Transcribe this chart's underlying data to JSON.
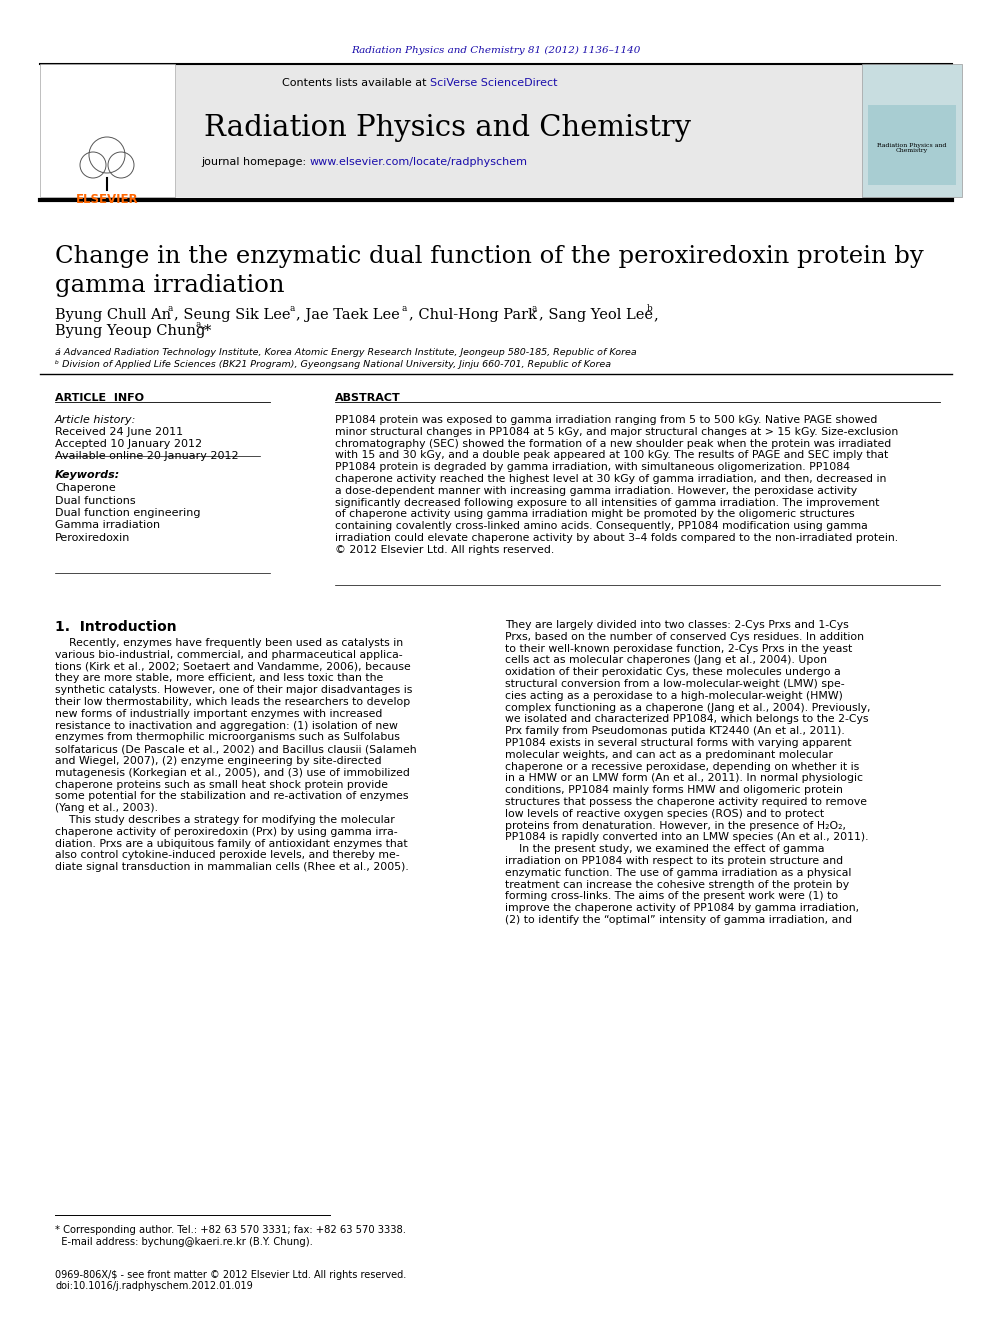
{
  "page_bg": "#ffffff",
  "journal_ref": "Radiation Physics and Chemistry 81 (2012) 1136–1140",
  "journal_ref_color": "#1a0dab",
  "journal_name": "Radiation Physics and Chemistry",
  "header_bg": "#e8e8e8",
  "contents_text": "Contents lists available at ",
  "sciverse_text": "SciVerse ScienceDirect",
  "sciverse_color": "#1a0dab",
  "journal_url": "www.elsevier.com/locate/radphyschem",
  "journal_url_color": "#1a0dab",
  "article_title": "Change in the enzymatic dual function of the peroxiredoxin protein by\ngamma irradiation",
  "article_info_title": "ARTICLE  INFO",
  "abstract_title": "ABSTRACT",
  "article_history_label": "Article history:",
  "received": "Received 24 June 2011",
  "accepted": "Accepted 10 January 2012",
  "available": "Available online 20 January 2012",
  "keywords_label": "Keywords:",
  "keywords": [
    "Chaperone",
    "Dual functions",
    "Dual function engineering",
    "Gamma irradiation",
    "Peroxiredoxin"
  ],
  "abstract_text": "PP1084 protein was exposed to gamma irradiation ranging from 5 to 500 kGy. Native PAGE showed\nminor structural changes in PP1084 at 5 kGy, and major structural changes at > 15 kGy. Size-exclusion\nchromatography (SEC) showed the formation of a new shoulder peak when the protein was irradiated\nwith 15 and 30 kGy, and a double peak appeared at 100 kGy. The results of PAGE and SEC imply that\nPP1084 protein is degraded by gamma irradiation, with simultaneous oligomerization. PP1084\nchaperone activity reached the highest level at 30 kGy of gamma irradiation, and then, decreased in\na dose-dependent manner with increasing gamma irradiation. However, the peroxidase activity\nsignificantly decreased following exposure to all intensities of gamma irradiation. The improvement\nof chaperone activity using gamma irradiation might be promoted by the oligomeric structures\ncontaining covalently cross-linked amino acids. Consequently, PP1084 modification using gamma\nirradiation could elevate chaperone activity by about 3–4 folds compared to the non-irradiated protein.\n© 2012 Elsevier Ltd. All rights reserved.",
  "intro_title": "1.  Introduction",
  "intro_col1_lines": [
    "    Recently, enzymes have frequently been used as catalysts in",
    "various bio-industrial, commercial, and pharmaceutical applica-",
    "tions (Kirk et al., 2002; Soetaert and Vandamme, 2006), because",
    "they are more stable, more efficient, and less toxic than the",
    "synthetic catalysts. However, one of their major disadvantages is",
    "their low thermostability, which leads the researchers to develop",
    "new forms of industrially important enzymes with increased",
    "resistance to inactivation and aggregation: (1) isolation of new",
    "enzymes from thermophilic microorganisms such as Sulfolabus",
    "solfataricus (De Pascale et al., 2002) and Bacillus clausii (Salameh",
    "and Wiegel, 2007), (2) enzyme engineering by site-directed",
    "mutagenesis (Korkegian et al., 2005), and (3) use of immobilized",
    "chaperone proteins such as small heat shock protein provide",
    "some potential for the stabilization and re-activation of enzymes",
    "(Yang et al., 2003).",
    "    This study describes a strategy for modifying the molecular",
    "chaperone activity of peroxiredoxin (Prx) by using gamma irra-",
    "diation. Prxs are a ubiquitous family of antioxidant enzymes that",
    "also control cytokine-induced peroxide levels, and thereby me-",
    "diate signal transduction in mammalian cells (Rhee et al., 2005)."
  ],
  "intro_col2_lines": [
    "They are largely divided into two classes: 2-Cys Prxs and 1-Cys",
    "Prxs, based on the number of conserved Cys residues. In addition",
    "to their well-known peroxidase function, 2-Cys Prxs in the yeast",
    "cells act as molecular chaperones (Jang et al., 2004). Upon",
    "oxidation of their peroxidatic Cys, these molecules undergo a",
    "structural conversion from a low-molecular-weight (LMW) spe-",
    "cies acting as a peroxidase to a high-molecular-weight (HMW)",
    "complex functioning as a chaperone (Jang et al., 2004). Previously,",
    "we isolated and characterized PP1084, which belongs to the 2-Cys",
    "Prx family from Pseudomonas putida KT2440 (An et al., 2011).",
    "PP1084 exists in several structural forms with varying apparent",
    "molecular weights, and can act as a predominant molecular",
    "chaperone or a recessive peroxidase, depending on whether it is",
    "in a HMW or an LMW form (An et al., 2011). In normal physiologic",
    "conditions, PP1084 mainly forms HMW and oligomeric protein",
    "structures that possess the chaperone activity required to remove",
    "low levels of reactive oxygen species (ROS) and to protect",
    "proteins from denaturation. However, in the presence of H₂O₂,",
    "PP1084 is rapidly converted into an LMW species (An et al., 2011).",
    "    In the present study, we examined the effect of gamma",
    "irradiation on PP1084 with respect to its protein structure and",
    "enzymatic function. The use of gamma irradiation as a physical",
    "treatment can increase the cohesive strength of the protein by",
    "forming cross-links. The aims of the present work were (1) to",
    "improve the chaperone activity of PP1084 by gamma irradiation,",
    "(2) to identify the “optimal” intensity of gamma irradiation, and"
  ],
  "affil_a": "á Advanced Radiation Technology Institute, Korea Atomic Energy Research Institute, Jeongeup 580-185, Republic of Korea",
  "affil_b": "ᵇ Division of Applied Life Sciences (BK21 Program), Gyeongsang National University, Jinju 660-701, Republic of Korea",
  "footer_line1": "* Corresponding author. Tel.: +82 63 570 3331; fax: +82 63 570 3338.",
  "footer_line2": "  E-mail address: bychung@kaeri.re.kr (B.Y. Chung).",
  "copyright1": "0969-806X/$ - see front matter © 2012 Elsevier Ltd. All rights reserved.",
  "copyright2": "doi:10.1016/j.radphyschem.2012.01.019",
  "link_color": "#1a0dab"
}
